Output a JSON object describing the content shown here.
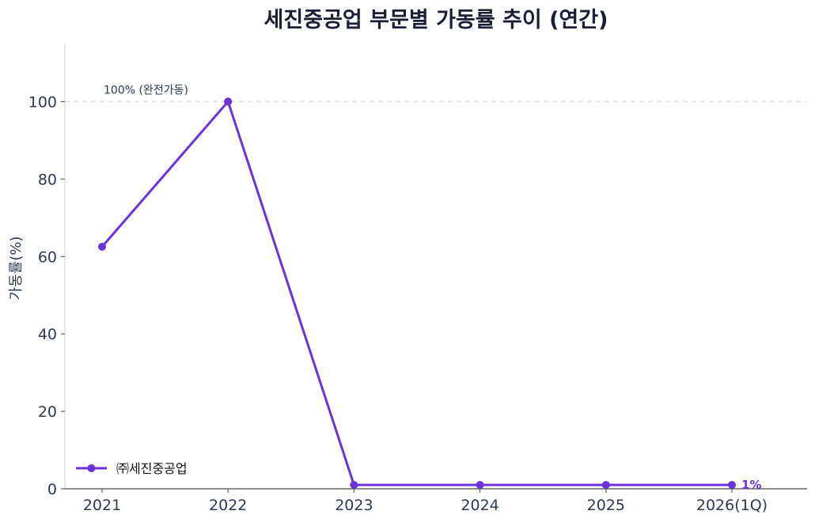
{
  "chart_data": {
    "type": "line",
    "title": "세진중공업 부문별 가동률 추이 (연간)",
    "xlabel": "",
    "ylabel": "가동률(%)",
    "categories": [
      "2021",
      "2022",
      "2023",
      "2024",
      "2025",
      "2026(1Q)"
    ],
    "ylim": [
      0,
      115
    ],
    "yticks": [
      0,
      20,
      40,
      60,
      80,
      100
    ],
    "grid": false,
    "legend_position": "bottom-left",
    "series": [
      {
        "name": "㈜세진중공업",
        "values": [
          62.5,
          100,
          1,
          1,
          1,
          1
        ],
        "color": "#6d32e0"
      }
    ],
    "reference_line": {
      "value": 100,
      "label": "100% (완전가동)",
      "color": "#dde1ea"
    },
    "end_label": "1%"
  }
}
